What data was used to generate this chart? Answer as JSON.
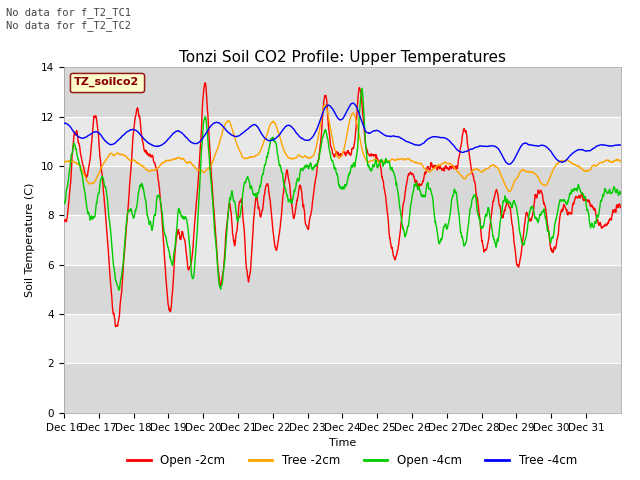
{
  "title": "Tonzi Soil CO2 Profile: Upper Temperatures",
  "xlabel": "Time",
  "ylabel": "Soil Temperature (C)",
  "ylim": [
    0,
    14
  ],
  "yticks": [
    0,
    2,
    4,
    6,
    8,
    10,
    12,
    14
  ],
  "annotation_text": "No data for f_T2_TC1\nNo data for f_T2_TC2",
  "legend_label": "TZ_soilco2",
  "series_labels": [
    "Open -2cm",
    "Tree -2cm",
    "Open -4cm",
    "Tree -4cm"
  ],
  "series_colors": [
    "#ff0000",
    "#ffa500",
    "#00cc00",
    "#0000ff"
  ],
  "background_color": "#ffffff",
  "plot_bg_color_light": "#e8e8e8",
  "plot_bg_color_dark": "#d0d0d0",
  "grid_color": "#ffffff",
  "xticklabels": [
    "Dec 16",
    "Dec 17",
    "Dec 18",
    "Dec 19",
    "Dec 20",
    "Dec 21",
    "Dec 22",
    "Dec 23",
    "Dec 24",
    "Dec 25",
    "Dec 26",
    "Dec 27",
    "Dec 28",
    "Dec 29",
    "Dec 30",
    "Dec 31"
  ],
  "title_fontsize": 11,
  "axis_fontsize": 8,
  "tick_fontsize": 7.5
}
